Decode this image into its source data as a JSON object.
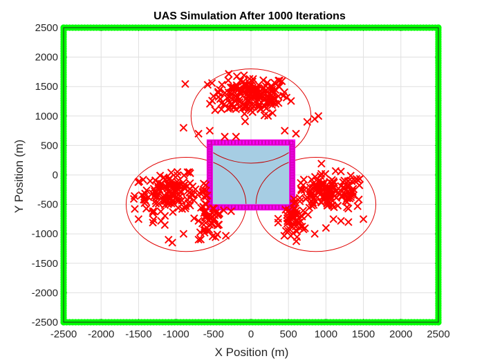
{
  "chart_data": {
    "type": "scatter",
    "title": "UAS Simulation After 1000 Iterations",
    "xlabel": "X Position (m)",
    "ylabel": "Y Position (m)",
    "xlim": [
      -2500,
      2500
    ],
    "ylim": [
      -2500,
      2500
    ],
    "xticks": [
      -2500,
      -2000,
      -1500,
      -1000,
      -500,
      0,
      500,
      1000,
      1500,
      2000,
      2500
    ],
    "yticks": [
      -2500,
      -2000,
      -1500,
      -1000,
      -500,
      0,
      500,
      1000,
      1500,
      2000,
      2500
    ],
    "grid": true,
    "colors": {
      "boundary": "#00ff00",
      "uav": "#ff0000",
      "zone_border": "#ff00ff",
      "zone_fill": "#a6cde3",
      "circle": "#e00000"
    },
    "boundary": {
      "marker": "circle",
      "square": [
        -2500,
        2500,
        -2500,
        2500
      ],
      "spacing": 40
    },
    "restricted_zone": {
      "x": [
        -550,
        550
      ],
      "y": [
        -550,
        550
      ],
      "inner_arcs_radius": 500
    },
    "search_circles": [
      {
        "cx": 0,
        "cy": 1000,
        "r": 800
      },
      {
        "cx": -866,
        "cy": -500,
        "r": 800
      },
      {
        "cx": 866,
        "cy": -500,
        "r": 800
      }
    ],
    "uav_clusters": [
      {
        "cx": 0,
        "cy": 1350,
        "sx": 420,
        "sy": 280,
        "count": 180
      },
      {
        "cx": -1050,
        "cy": -300,
        "sx": 420,
        "sy": 250,
        "count": 150
      },
      {
        "cx": 1050,
        "cy": -300,
        "sx": 420,
        "sy": 250,
        "count": 150
      },
      {
        "cx": -550,
        "cy": -750,
        "sx": 150,
        "sy": 280,
        "count": 50
      },
      {
        "cx": 550,
        "cy": -750,
        "sx": 150,
        "sy": 280,
        "count": 50
      }
    ],
    "uav_points": [
      [
        -1100,
        -1100
      ],
      [
        -1050,
        -1150
      ],
      [
        -1300,
        -760
      ],
      [
        -1200,
        -780
      ],
      [
        -1500,
        -750
      ],
      [
        -700,
        -780
      ],
      [
        -1150,
        -850
      ],
      [
        -900,
        -1000
      ],
      [
        500,
        -950
      ],
      [
        650,
        -900
      ],
      [
        850,
        -1000
      ],
      [
        1000,
        -900
      ],
      [
        1200,
        -780
      ],
      [
        1500,
        -750
      ],
      [
        1300,
        -800
      ],
      [
        1100,
        -750
      ],
      [
        -900,
        800
      ],
      [
        -700,
        700
      ],
      [
        -550,
        750
      ],
      [
        -350,
        650
      ],
      [
        -200,
        650
      ],
      [
        750,
        900
      ],
      [
        600,
        700
      ],
      [
        450,
        750
      ],
      [
        900,
        1000
      ],
      [
        850,
        950
      ]
    ]
  }
}
